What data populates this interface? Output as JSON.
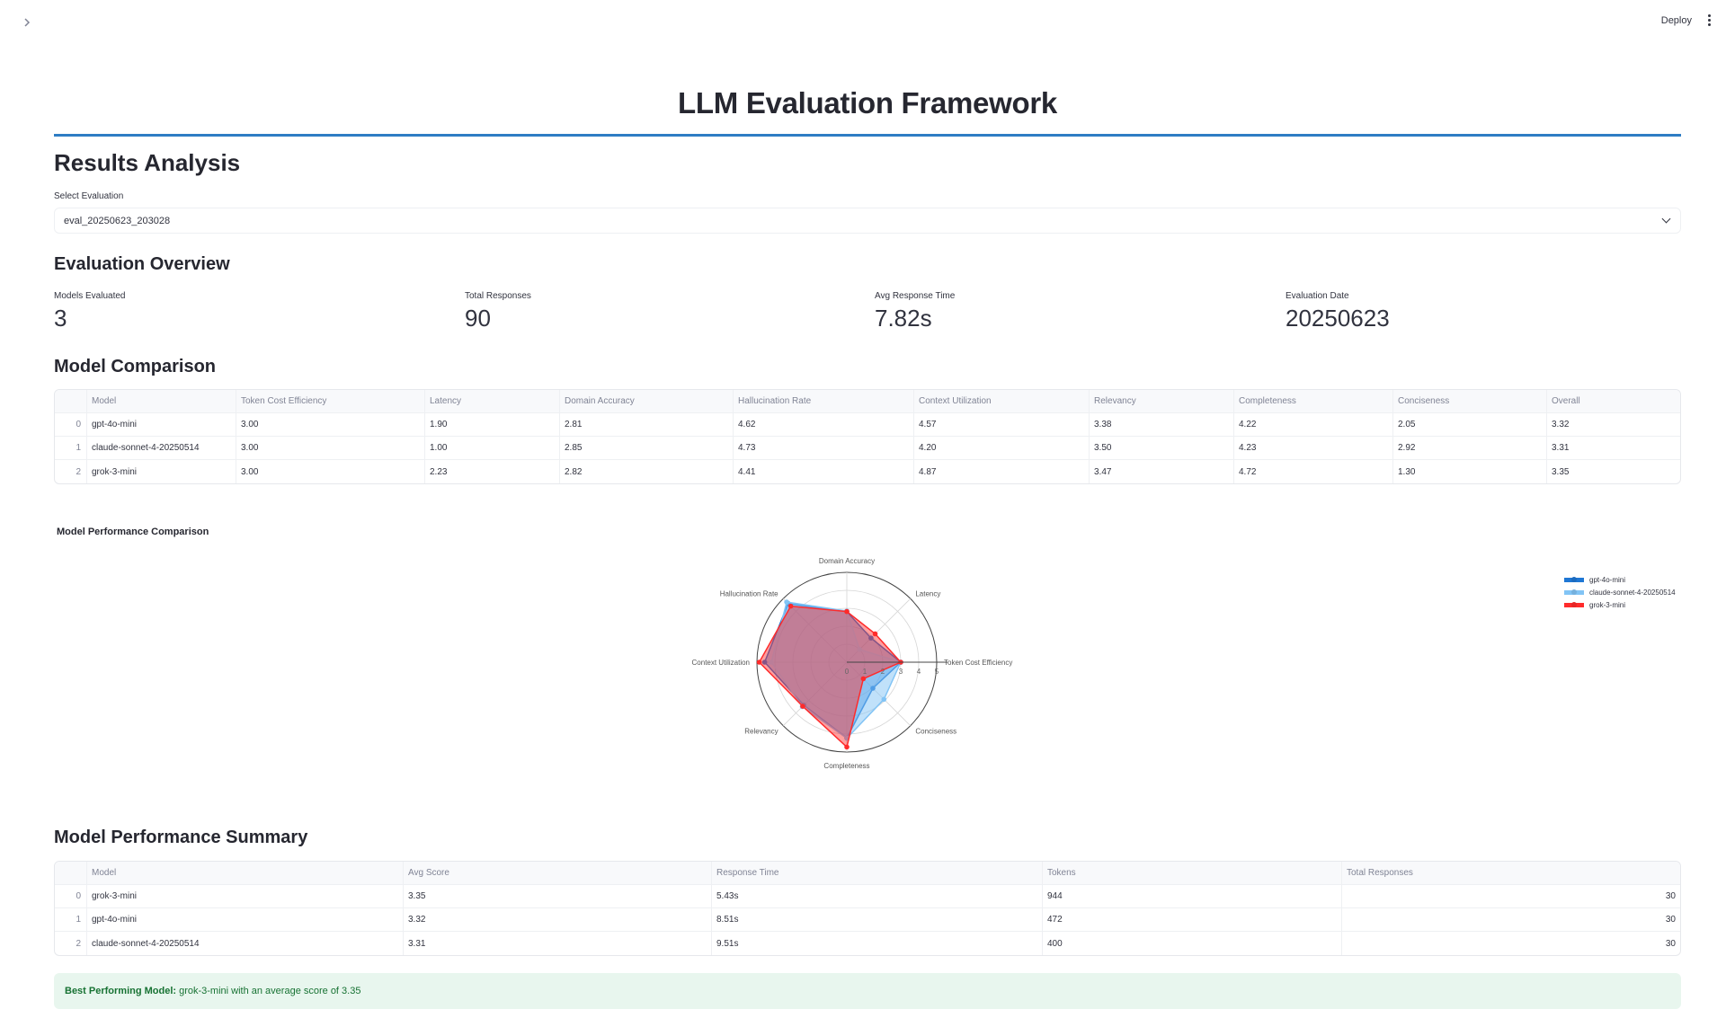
{
  "header": {
    "deploy_label": "Deploy",
    "sidebar_toggle_icon": "chevron-right-icon",
    "menu_icon": "vertical-ellipsis-icon"
  },
  "app": {
    "title": "LLM Evaluation Framework",
    "accent_color": "#2e7dc4"
  },
  "results": {
    "heading": "Results Analysis",
    "select_label": "Select Evaluation",
    "select_value": "eval_20250623_203028"
  },
  "overview": {
    "heading": "Evaluation Overview",
    "metrics": [
      {
        "label": "Models Evaluated",
        "value": "3"
      },
      {
        "label": "Total Responses",
        "value": "90"
      },
      {
        "label": "Avg Response Time",
        "value": "7.82s"
      },
      {
        "label": "Evaluation Date",
        "value": "20250623"
      }
    ]
  },
  "comparison": {
    "heading": "Model Comparison",
    "columns": [
      "",
      "Model",
      "Token Cost Efficiency",
      "Latency",
      "Domain Accuracy",
      "Hallucination Rate",
      "Context Utilization",
      "Relevancy",
      "Completeness",
      "Conciseness",
      "Overall"
    ],
    "rows": [
      [
        "0",
        "gpt-4o-mini",
        "3.00",
        "1.90",
        "2.81",
        "4.62",
        "4.57",
        "3.38",
        "4.22",
        "2.05",
        "3.32"
      ],
      [
        "1",
        "claude-sonnet-4-20250514",
        "3.00",
        "1.00",
        "2.85",
        "4.73",
        "4.20",
        "3.50",
        "4.23",
        "2.92",
        "3.31"
      ],
      [
        "2",
        "grok-3-mini",
        "3.00",
        "2.23",
        "2.82",
        "4.41",
        "4.87",
        "3.47",
        "4.72",
        "1.30",
        "3.35"
      ]
    ]
  },
  "chart_data": {
    "type": "radar",
    "title": "Model Performance Comparison",
    "categories": [
      "Token Cost Efficiency",
      "Latency",
      "Domain Accuracy",
      "Hallucination Rate",
      "Context Utilization",
      "Relevancy",
      "Completeness",
      "Conciseness"
    ],
    "radial_range": [
      0,
      5
    ],
    "radial_ticks": [
      "0",
      "1",
      "2",
      "3",
      "4",
      "5"
    ],
    "legend_position": "right",
    "series": [
      {
        "name": "gpt-4o-mini",
        "color": "#1f77d4",
        "fill": "rgba(31,119,212,0.45)",
        "values": [
          3.0,
          1.9,
          2.81,
          4.62,
          4.57,
          3.38,
          4.22,
          2.05
        ]
      },
      {
        "name": "claude-sonnet-4-20250514",
        "color": "#82c4f5",
        "fill": "rgba(130,196,245,0.5)",
        "values": [
          3.0,
          1.0,
          2.85,
          4.73,
          4.2,
          3.5,
          4.23,
          2.92
        ]
      },
      {
        "name": "grok-3-mini",
        "color": "#ff2b2b",
        "fill": "rgba(255,43,43,0.45)",
        "values": [
          3.0,
          2.23,
          2.82,
          4.41,
          4.87,
          3.47,
          4.72,
          1.3
        ]
      }
    ]
  },
  "summary": {
    "heading": "Model Performance Summary",
    "columns": [
      "",
      "Model",
      "Avg Score",
      "Response Time",
      "Tokens",
      "Total Responses"
    ],
    "rows": [
      [
        "0",
        "grok-3-mini",
        "3.35",
        "5.43s",
        "944",
        "30"
      ],
      [
        "1",
        "gpt-4o-mini",
        "3.32",
        "8.51s",
        "472",
        "30"
      ],
      [
        "2",
        "claude-sonnet-4-20250514",
        "3.31",
        "9.51s",
        "400",
        "30"
      ]
    ]
  },
  "best": {
    "label": "Best Performing Model:",
    "text": "grok-3-mini with an average score of 3.35"
  }
}
